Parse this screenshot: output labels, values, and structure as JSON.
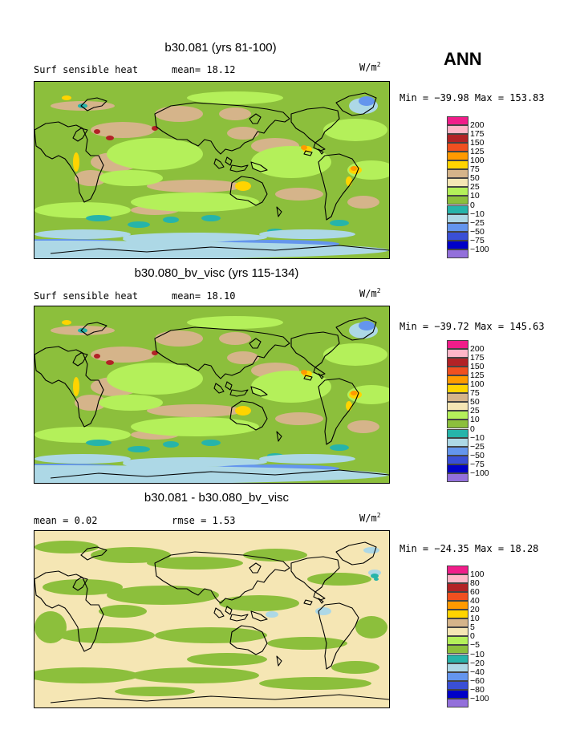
{
  "season": "ANN",
  "palette": [
    "#f01d8a",
    "#ffb6c8",
    "#b22226",
    "#f05020",
    "#ff9a00",
    "#ffd400",
    "#d5b48a",
    "#f5e6b4",
    "#b4f05a",
    "#8cbf3c",
    "#26b4aa",
    "#add8e6",
    "#6495ed",
    "#3a4fd6",
    "#0000c8",
    "#9370db"
  ],
  "panels": [
    {
      "title": "b30.081 (yrs 81-100)",
      "left_text": "Surf sensible heat",
      "mid_text": "mean=  18.12",
      "units": "W/m",
      "units_sup": "2",
      "stats": "Min = −39.98 Max = 153.83",
      "levels": [
        "200",
        "175",
        "150",
        "125",
        "100",
        "75",
        "50",
        "25",
        "10",
        "0",
        "−10",
        "−25",
        "−50",
        "−75",
        "−100"
      ],
      "base": "#8cbf3c",
      "blobs": "b1"
    },
    {
      "title": "b30.080_bv_visc (yrs 115-134)",
      "left_text": "Surf sensible heat",
      "mid_text": "mean=  18.10",
      "units": "W/m",
      "units_sup": "2",
      "stats": "Min = −39.72 Max = 145.63",
      "levels": [
        "200",
        "175",
        "150",
        "125",
        "100",
        "75",
        "50",
        "25",
        "10",
        "0",
        "−10",
        "−25",
        "−50",
        "−75",
        "−100"
      ],
      "base": "#8cbf3c",
      "blobs": "b2"
    },
    {
      "title": "b30.081 - b30.080_bv_visc",
      "left_text": "mean =   0.02",
      "mid_text": "rmse =   1.53",
      "units": "W/m",
      "units_sup": "2",
      "stats": "Min = −24.35 Max =  18.28",
      "levels": [
        "100",
        "80",
        "60",
        "40",
        "20",
        "10",
        "5",
        "0",
        "−5",
        "−10",
        "−20",
        "−40",
        "−60",
        "−80",
        "−100"
      ],
      "base": "#f5e6b4",
      "blobs": "diff"
    }
  ]
}
